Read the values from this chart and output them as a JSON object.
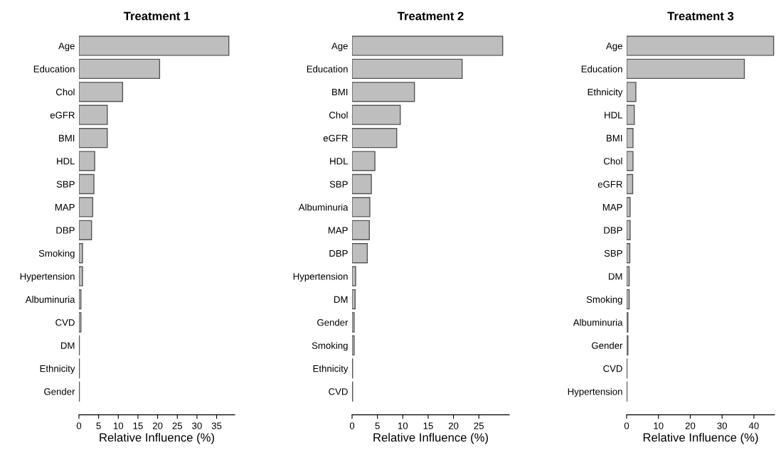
{
  "chart_data": [
    {
      "type": "bar",
      "orientation": "horizontal",
      "title": "Treatment 1",
      "xlabel": "Relative Influence (%)",
      "categories": [
        "Age",
        "Education",
        "Chol",
        "eGFR",
        "BMI",
        "HDL",
        "SBP",
        "MAP",
        "DBP",
        "Smoking",
        "Hypertension",
        "Albuminuria",
        "CVD",
        "DM",
        "Ethnicity",
        "Gender"
      ],
      "values": [
        38.1,
        20.5,
        11.1,
        7.2,
        7.2,
        4.0,
        3.8,
        3.5,
        3.2,
        0.9,
        0.9,
        0.5,
        0.5,
        0.1,
        0.1,
        0.1
      ],
      "color": "#bebebe",
      "xlim": [
        0,
        39.6
      ],
      "xticks": [
        0,
        5,
        10,
        15,
        20,
        25,
        30,
        35
      ],
      "grid": false,
      "legend": false
    },
    {
      "type": "bar",
      "orientation": "horizontal",
      "title": "Treatment 2",
      "xlabel": "Relative Influence (%)",
      "categories": [
        "Age",
        "Education",
        "BMI",
        "Chol",
        "eGFR",
        "HDL",
        "SBP",
        "Albuminuria",
        "MAP",
        "DBP",
        "Hypertension",
        "DM",
        "Gender",
        "Smoking",
        "Ethnicity",
        "CVD"
      ],
      "values": [
        29.7,
        21.7,
        12.3,
        9.5,
        8.8,
        4.5,
        3.8,
        3.5,
        3.4,
        3.0,
        0.7,
        0.6,
        0.4,
        0.4,
        0.1,
        0.1
      ],
      "color": "#bebebe",
      "xlim": [
        0,
        31
      ],
      "xticks": [
        0,
        5,
        10,
        15,
        20,
        25
      ],
      "grid": false,
      "legend": false
    },
    {
      "type": "bar",
      "orientation": "horizontal",
      "title": "Treatment 3",
      "xlabel": "Relative Influence (%)",
      "categories": [
        "Age",
        "Education",
        "Ethnicity",
        "HDL",
        "BMI",
        "Chol",
        "eGFR",
        "MAP",
        "DBP",
        "SBP",
        "DM",
        "Smoking",
        "Albuminuria",
        "Gender",
        "CVD",
        "Hypertension"
      ],
      "values": [
        46.2,
        37.0,
        2.9,
        2.4,
        2.0,
        2.0,
        1.9,
        1.1,
        1.1,
        1.0,
        0.8,
        0.8,
        0.4,
        0.4,
        0.1,
        0.1
      ],
      "color": "#bebebe",
      "xlim": [
        0,
        46.5
      ],
      "xticks": [
        0,
        10,
        20,
        30,
        40
      ],
      "grid": false,
      "legend": false
    }
  ]
}
